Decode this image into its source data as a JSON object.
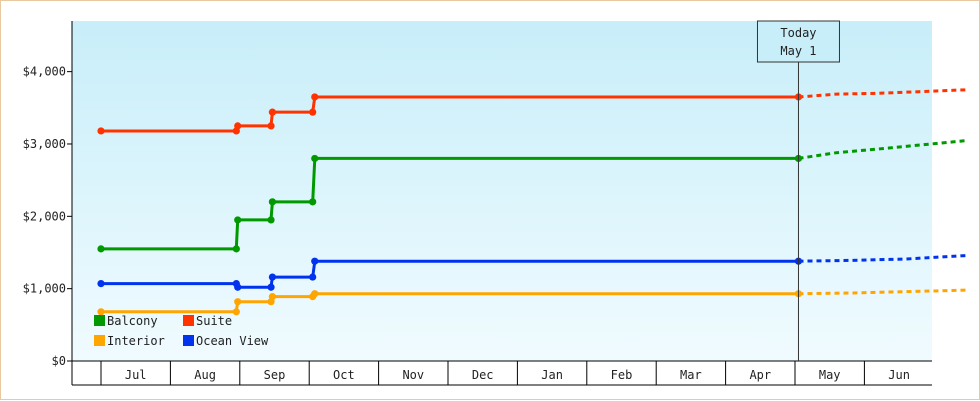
{
  "chart_data": {
    "type": "line",
    "x_categories": [
      "",
      "Jul",
      "Aug",
      "Sep",
      "Oct",
      "Nov",
      "Dec",
      "Jan",
      "Feb",
      "Mar",
      "Apr",
      "May",
      "Jun"
    ],
    "ylim": [
      0,
      4700
    ],
    "yticks": [
      {
        "value": 0,
        "label": "$0"
      },
      {
        "value": 1000,
        "label": "$1,000"
      },
      {
        "value": 2000,
        "label": "$2,000"
      },
      {
        "value": 3000,
        "label": "$3,000"
      },
      {
        "value": 4000,
        "label": "$4,000"
      }
    ],
    "today": {
      "line1": "Today",
      "line2": "May 1"
    },
    "series": [
      {
        "name": "Suite",
        "color": "#ff3300",
        "points": [
          [
            0,
            3180
          ],
          [
            1.95,
            3180
          ],
          [
            1.97,
            3250
          ],
          [
            2.45,
            3250
          ],
          [
            2.47,
            3440
          ],
          [
            3.05,
            3440
          ],
          [
            3.08,
            3650
          ],
          [
            10.05,
            3650
          ]
        ],
        "forecast": [
          [
            10.05,
            3650
          ],
          [
            10.6,
            3690
          ],
          [
            11.2,
            3700
          ],
          [
            12.5,
            3750
          ]
        ]
      },
      {
        "name": "Balcony",
        "color": "#009900",
        "points": [
          [
            0,
            1550
          ],
          [
            1.95,
            1550
          ],
          [
            1.97,
            1950
          ],
          [
            2.45,
            1950
          ],
          [
            2.47,
            2200
          ],
          [
            3.05,
            2200
          ],
          [
            3.08,
            2800
          ],
          [
            10.05,
            2800
          ]
        ],
        "forecast": [
          [
            10.05,
            2800
          ],
          [
            10.6,
            2880
          ],
          [
            11.2,
            2930
          ],
          [
            12.5,
            3050
          ]
        ]
      },
      {
        "name": "Ocean View",
        "color": "#0033ee",
        "points": [
          [
            0,
            1070
          ],
          [
            1.95,
            1070
          ],
          [
            1.97,
            1020
          ],
          [
            2.45,
            1020
          ],
          [
            2.47,
            1160
          ],
          [
            3.05,
            1160
          ],
          [
            3.08,
            1380
          ],
          [
            10.05,
            1380
          ]
        ],
        "forecast": [
          [
            10.05,
            1380
          ],
          [
            10.8,
            1390
          ],
          [
            11.6,
            1410
          ],
          [
            12.5,
            1460
          ]
        ]
      },
      {
        "name": "Interior",
        "color": "#ffa500",
        "points": [
          [
            0,
            680
          ],
          [
            1.95,
            680
          ],
          [
            1.97,
            820
          ],
          [
            2.45,
            820
          ],
          [
            2.47,
            890
          ],
          [
            3.05,
            890
          ],
          [
            3.08,
            930
          ],
          [
            10.05,
            930
          ]
        ],
        "forecast": [
          [
            10.05,
            930
          ],
          [
            10.8,
            940
          ],
          [
            11.6,
            960
          ],
          [
            12.5,
            980
          ]
        ]
      }
    ],
    "legend": [
      {
        "name": "Balcony",
        "color": "#009900"
      },
      {
        "name": "Suite",
        "color": "#ff3300"
      },
      {
        "name": "Interior",
        "color": "#ffa500"
      },
      {
        "name": "Ocean View",
        "color": "#0033ee"
      }
    ],
    "legend_position": "bottom-left"
  }
}
